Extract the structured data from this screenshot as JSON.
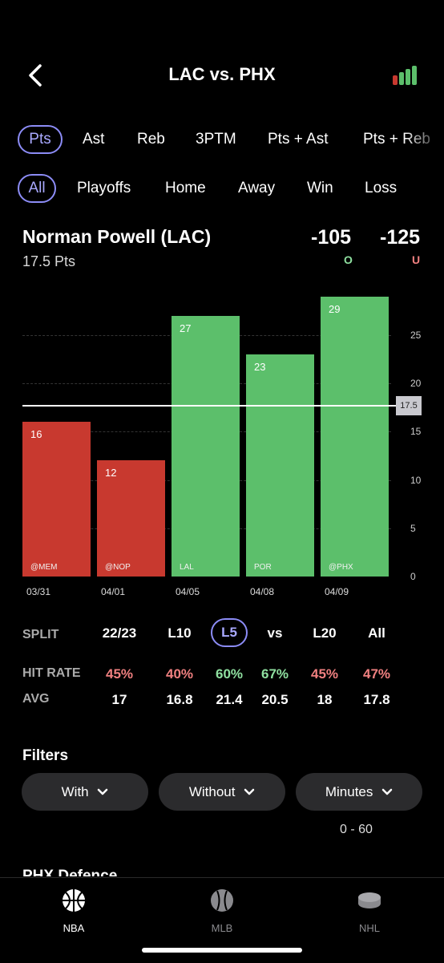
{
  "header": {
    "title": "LAC vs. PHX"
  },
  "stat_tabs": [
    {
      "label": "Pts",
      "active": true
    },
    {
      "label": "Ast"
    },
    {
      "label": "Reb"
    },
    {
      "label": "3PTM"
    },
    {
      "label": "Pts + Ast"
    },
    {
      "label": "Pts + Reb"
    }
  ],
  "game_filters": [
    {
      "label": "All",
      "active": true
    },
    {
      "label": "Playoffs"
    },
    {
      "label": "Home"
    },
    {
      "label": "Away"
    },
    {
      "label": "Win"
    },
    {
      "label": "Loss"
    }
  ],
  "player": {
    "name": "Norman Powell (LAC)",
    "line": "17.5 Pts",
    "over_odds": "-105",
    "over_label": "O",
    "under_odds": "-125",
    "under_label": "U"
  },
  "colors": {
    "over": "#5cbf6b",
    "under": "#c8392f",
    "accent": "#8c8cf6",
    "over_text": "#8fe0a0",
    "under_text": "#f08080"
  },
  "chart_data": {
    "type": "bar",
    "categories": [
      "03/31",
      "04/01",
      "04/05",
      "04/08",
      "04/09"
    ],
    "opponents": [
      "@MEM",
      "@NOP",
      "LAL",
      "POR",
      "@PHX"
    ],
    "values": [
      16,
      12,
      27,
      23,
      29
    ],
    "value_labels": [
      "16",
      "12",
      "27",
      "23",
      "29"
    ],
    "reference_line": 17.5,
    "reference_label": "17.5",
    "ylim": [
      0,
      30
    ],
    "yticks": [
      0,
      5,
      10,
      15,
      20,
      25
    ],
    "ytick_labels": [
      "0",
      "5",
      "10",
      "15",
      "20",
      "25"
    ]
  },
  "splits": {
    "label": "SPLIT",
    "hit_rate_label": "HIT RATE",
    "avg_label": "AVG",
    "columns": [
      {
        "label": "22/23",
        "hit_rate": "45%",
        "avg": "17",
        "hit": "under"
      },
      {
        "label": "L10",
        "hit_rate": "40%",
        "avg": "16.8",
        "hit": "under"
      },
      {
        "label": "L5",
        "hit_rate": "60%",
        "avg": "21.4",
        "hit": "over",
        "active": true
      },
      {
        "label": "vs",
        "hit_rate": "67%",
        "avg": "20.5",
        "hit": "over"
      },
      {
        "label": "L20",
        "hit_rate": "45%",
        "avg": "18",
        "hit": "under"
      },
      {
        "label": "All",
        "hit_rate": "47%",
        "avg": "17.8",
        "hit": "under"
      }
    ]
  },
  "filters": {
    "title": "Filters",
    "buttons": [
      "With",
      "Without",
      "Minutes"
    ],
    "minutes_range": "0 - 60"
  },
  "next_section": "PHX Defence",
  "bottom_nav": [
    {
      "label": "NBA",
      "icon": "basketball-icon",
      "active": true
    },
    {
      "label": "MLB",
      "icon": "baseball-icon"
    },
    {
      "label": "NHL",
      "icon": "hockey-puck-icon"
    }
  ]
}
